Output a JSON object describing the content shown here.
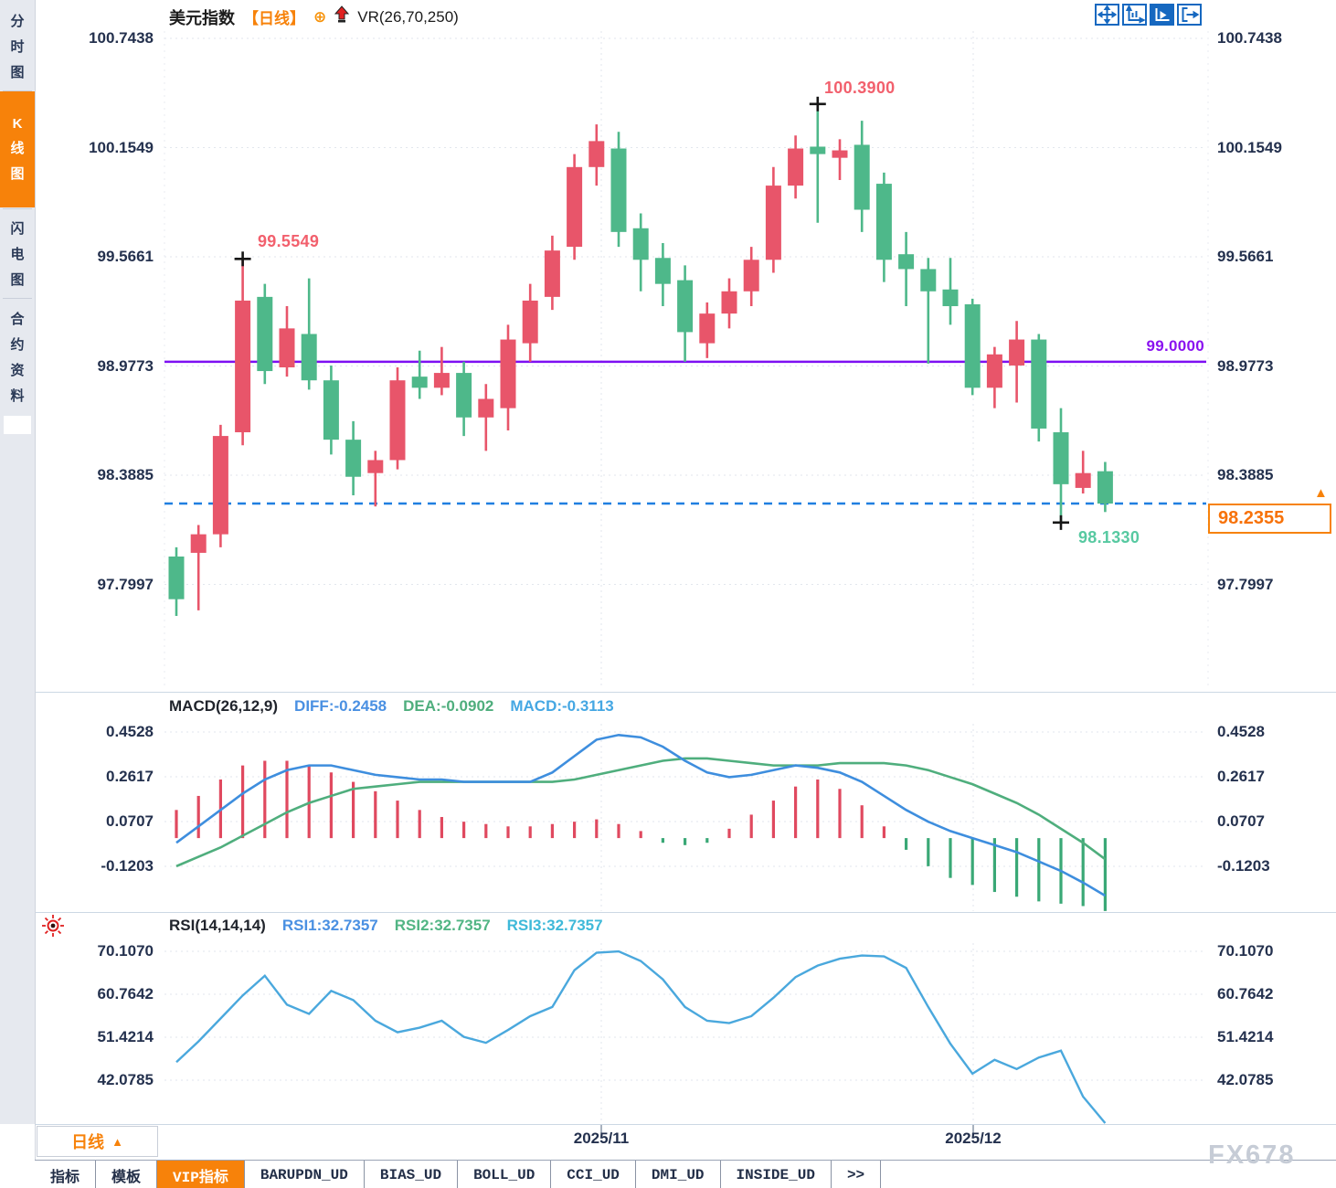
{
  "header": {
    "title": "美元指数",
    "period": "【日线】",
    "overlay_indicator": "VR(26,70,250)",
    "icons": [
      "move-icon",
      "axis-scale-icon",
      "chart-fit-icon",
      "pan-right-icon"
    ],
    "selected_icon_index": 2
  },
  "sidebar": {
    "items": [
      {
        "label": "分时图",
        "active": false
      },
      {
        "label": "K线图",
        "active": true
      },
      {
        "label": "闪电图",
        "active": false
      },
      {
        "label": "合约资料",
        "active": false
      }
    ]
  },
  "main_chart": {
    "y_axis_labels": [
      "100.7438",
      "100.1549",
      "99.5661",
      "98.9773",
      "98.3885",
      "97.7997"
    ],
    "annotations": {
      "high1": "99.5549",
      "high2": "100.3900",
      "low": "98.1330",
      "hline_label": "99.0000",
      "last_price": "98.2355"
    }
  },
  "macd_panel": {
    "title": "MACD(26,12,9)",
    "diff_label": "DIFF:-0.2458",
    "dea_label": "DEA:-0.0902",
    "macd_label": "MACD:-0.3113",
    "y_axis_labels": [
      "0.4528",
      "0.2617",
      "0.0707",
      "-0.1203"
    ]
  },
  "rsi_panel": {
    "title": "RSI(14,14,14)",
    "rsi1_label": "RSI1:32.7357",
    "rsi2_label": "RSI2:32.7357",
    "rsi3_label": "RSI3:32.7357",
    "y_axis_labels": [
      "70.1070",
      "60.7642",
      "51.4214",
      "42.0785"
    ]
  },
  "x_axis": {
    "labels": [
      "2025/11",
      "2025/12"
    ],
    "centers": [
      658,
      1065
    ]
  },
  "bottom_bar": {
    "period_button": "日线",
    "tabs": [
      {
        "label": "指标",
        "active": false
      },
      {
        "label": "模板",
        "active": false
      },
      {
        "label": "VIP指标",
        "active": true
      },
      {
        "label": "BARUPDN_UD",
        "active": false
      },
      {
        "label": "BIAS_UD",
        "active": false
      },
      {
        "label": "BOLL_UD",
        "active": false
      },
      {
        "label": "CCI_UD",
        "active": false
      },
      {
        "label": "DMI_UD",
        "active": false
      },
      {
        "label": "INSIDE_UD",
        "active": false
      },
      {
        "label": ">>",
        "active": false
      }
    ]
  },
  "watermark": "FX678",
  "colors": {
    "accent_orange": "#f7820a",
    "up_red": "#e8556a",
    "down_green": "#4eb88a",
    "purple_line": "#7d0ff2",
    "dashed_blue": "#1f7fe0",
    "ann_red": "#f2606d",
    "ann_green": "#57c9a1",
    "axis_text": "#24314e",
    "diff_blue": "#3e8ede",
    "dea_green": "#4fae7d",
    "macd_label_blue": "#45a7e3",
    "hist_red": "#e0495f",
    "hist_green": "#3aa876",
    "rsi_line": "#4aa8dd",
    "grid": "#e2e6ed",
    "marker_black": "#161616"
  },
  "chart_data": [
    {
      "type": "candlestick",
      "title": "美元指数 日线",
      "color_convention": "red=up, green=down",
      "y_ticks": [
        100.7438,
        100.1549,
        99.5661,
        98.9773,
        98.3885,
        97.7997
      ],
      "horizontal_line": 99.0,
      "last_price_line": 98.2355,
      "marked_points": [
        {
          "kind": "high",
          "index": 3,
          "price": 99.5549
        },
        {
          "kind": "high",
          "index": 29,
          "price": 100.39
        },
        {
          "kind": "low",
          "index": 40,
          "price": 98.133
        }
      ],
      "ohlc": [
        [
          97.95,
          98.0,
          97.63,
          97.72
        ],
        [
          97.97,
          98.12,
          97.66,
          98.07
        ],
        [
          98.07,
          98.66,
          98.0,
          98.6
        ],
        [
          98.62,
          99.5549,
          98.55,
          99.33
        ],
        [
          99.35,
          99.42,
          98.88,
          98.95
        ],
        [
          98.97,
          99.3,
          98.92,
          99.18
        ],
        [
          99.15,
          99.45,
          98.85,
          98.9
        ],
        [
          98.9,
          98.98,
          98.5,
          98.58
        ],
        [
          98.58,
          98.68,
          98.28,
          98.38
        ],
        [
          98.4,
          98.52,
          98.22,
          98.47
        ],
        [
          98.47,
          98.97,
          98.42,
          98.9
        ],
        [
          98.92,
          99.06,
          98.8,
          98.86
        ],
        [
          98.86,
          99.08,
          98.82,
          98.94
        ],
        [
          98.94,
          99.0,
          98.6,
          98.7
        ],
        [
          98.7,
          98.88,
          98.52,
          98.8
        ],
        [
          98.75,
          99.2,
          98.63,
          99.12
        ],
        [
          99.1,
          99.42,
          99.0,
          99.33
        ],
        [
          99.35,
          99.68,
          99.28,
          99.6
        ],
        [
          99.62,
          100.12,
          99.55,
          100.05
        ],
        [
          100.05,
          100.28,
          99.95,
          100.19
        ],
        [
          100.15,
          100.24,
          99.62,
          99.7
        ],
        [
          99.72,
          99.8,
          99.38,
          99.55
        ],
        [
          99.56,
          99.64,
          99.3,
          99.42
        ],
        [
          99.44,
          99.52,
          99.0,
          99.16
        ],
        [
          99.1,
          99.32,
          99.02,
          99.26
        ],
        [
          99.26,
          99.45,
          99.18,
          99.38
        ],
        [
          99.38,
          99.62,
          99.3,
          99.55
        ],
        [
          99.55,
          100.05,
          99.48,
          99.95
        ],
        [
          99.95,
          100.22,
          99.88,
          100.15
        ],
        [
          100.16,
          100.39,
          99.75,
          100.12
        ],
        [
          100.1,
          100.2,
          99.98,
          100.14
        ],
        [
          100.17,
          100.3,
          99.7,
          99.82
        ],
        [
          99.96,
          100.02,
          99.43,
          99.55
        ],
        [
          99.58,
          99.7,
          99.3,
          99.5
        ],
        [
          99.5,
          99.56,
          98.99,
          99.38
        ],
        [
          99.39,
          99.56,
          99.2,
          99.3
        ],
        [
          99.31,
          99.34,
          98.82,
          98.86
        ],
        [
          98.86,
          99.08,
          98.75,
          99.04
        ],
        [
          98.98,
          99.22,
          98.78,
          99.12
        ],
        [
          99.12,
          99.15,
          98.57,
          98.64
        ],
        [
          98.62,
          98.75,
          98.133,
          98.34
        ],
        [
          98.32,
          98.52,
          98.29,
          98.4
        ],
        [
          98.41,
          98.46,
          98.19,
          98.2355
        ]
      ]
    },
    {
      "type": "macd",
      "params": "26,12,9",
      "diff_last": -0.2458,
      "dea_last": -0.0902,
      "macd_last": -0.3113,
      "y_ticks": [
        0.4528,
        0.2617,
        0.0707,
        -0.1203
      ],
      "diff": [
        -0.02,
        0.05,
        0.12,
        0.19,
        0.25,
        0.29,
        0.31,
        0.31,
        0.29,
        0.27,
        0.26,
        0.25,
        0.25,
        0.24,
        0.24,
        0.24,
        0.24,
        0.28,
        0.35,
        0.42,
        0.44,
        0.43,
        0.39,
        0.33,
        0.28,
        0.26,
        0.27,
        0.29,
        0.31,
        0.3,
        0.28,
        0.24,
        0.18,
        0.12,
        0.07,
        0.03,
        0.0,
        -0.03,
        -0.06,
        -0.1,
        -0.14,
        -0.19,
        -0.2458
      ],
      "dea": [
        -0.12,
        -0.08,
        -0.04,
        0.01,
        0.06,
        0.11,
        0.15,
        0.18,
        0.21,
        0.22,
        0.23,
        0.24,
        0.24,
        0.24,
        0.24,
        0.24,
        0.24,
        0.24,
        0.25,
        0.27,
        0.29,
        0.31,
        0.33,
        0.34,
        0.34,
        0.33,
        0.32,
        0.31,
        0.31,
        0.31,
        0.32,
        0.32,
        0.32,
        0.31,
        0.29,
        0.26,
        0.23,
        0.19,
        0.15,
        0.1,
        0.04,
        -0.02,
        -0.0902
      ],
      "hist": [
        0.12,
        0.18,
        0.25,
        0.31,
        0.33,
        0.33,
        0.31,
        0.28,
        0.24,
        0.2,
        0.16,
        0.12,
        0.09,
        0.07,
        0.06,
        0.05,
        0.05,
        0.06,
        0.07,
        0.08,
        0.06,
        0.03,
        -0.02,
        -0.03,
        -0.02,
        0.04,
        0.1,
        0.16,
        0.22,
        0.25,
        0.21,
        0.14,
        0.05,
        -0.05,
        -0.12,
        -0.17,
        -0.2,
        -0.23,
        -0.25,
        -0.27,
        -0.28,
        -0.29,
        -0.3113
      ]
    },
    {
      "type": "line",
      "title": "RSI(14,14,14)",
      "last": 32.7357,
      "y_ticks": [
        70.107,
        60.7642,
        51.4214,
        42.0785
      ],
      "values": [
        46.0,
        50.5,
        55.5,
        60.5,
        64.8,
        58.5,
        56.5,
        61.5,
        59.5,
        55.0,
        52.5,
        53.5,
        55.0,
        51.5,
        50.2,
        53.0,
        56.0,
        58.0,
        66.0,
        69.8,
        70.1,
        68.0,
        64.0,
        58.0,
        55.0,
        54.5,
        56.0,
        60.0,
        64.5,
        67.0,
        68.5,
        69.2,
        69.0,
        66.5,
        58.0,
        50.0,
        43.5,
        46.5,
        44.5,
        47.0,
        48.5,
        38.5,
        32.7357
      ]
    }
  ]
}
